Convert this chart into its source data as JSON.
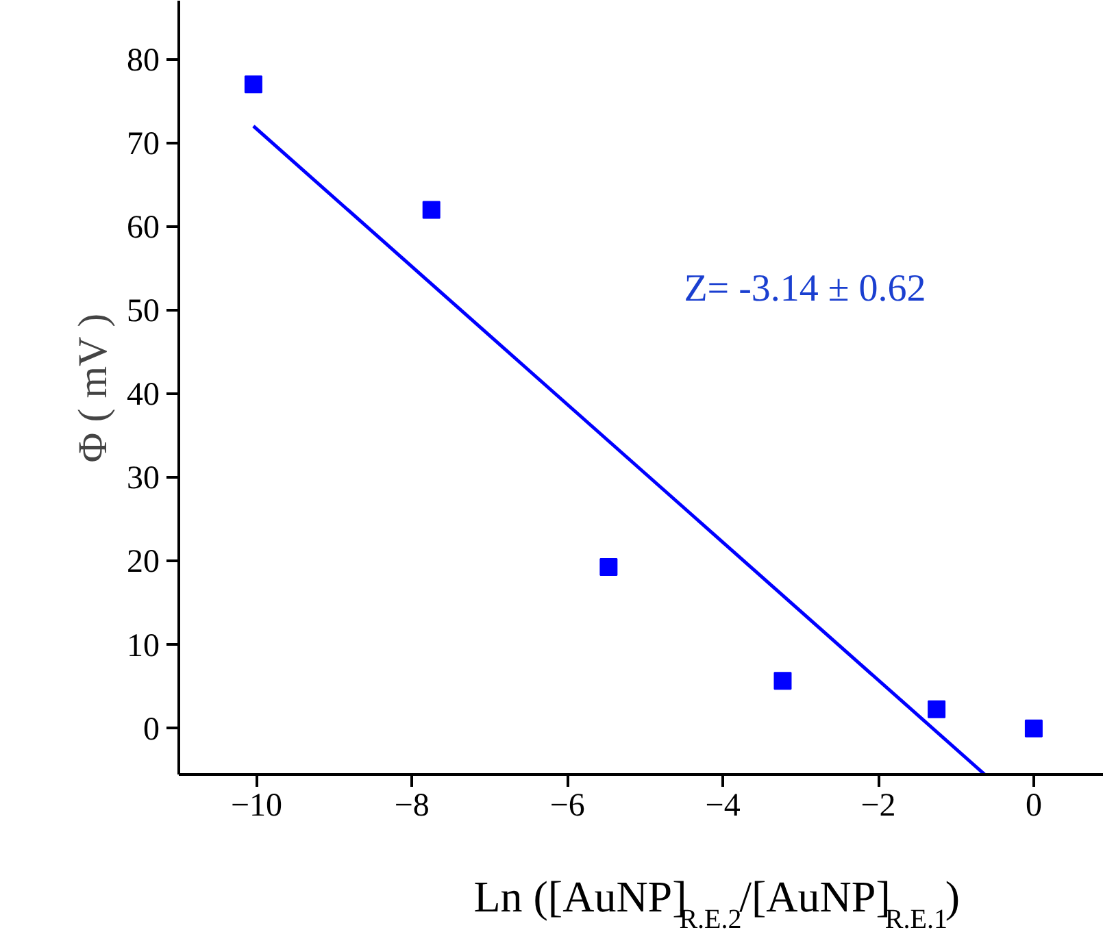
{
  "chart_data": {
    "type": "scatter",
    "xlabel": "Ln ([AuNP]$_{R.E.2}$/[AuNP]$_{R.E.1}$)",
    "ylabel": "Φ ( mV )",
    "xlim": [
      -11,
      0.9
    ],
    "ylim": [
      -5.5,
      87
    ],
    "xticks": [
      -10,
      -8,
      -6,
      -4,
      -2,
      0
    ],
    "yticks": [
      0,
      10,
      20,
      30,
      40,
      50,
      60,
      70,
      80
    ],
    "grid": false,
    "marker": "square",
    "series": [
      {
        "color": "#0000ff",
        "x": [
          -10.04,
          -7.75,
          -5.47,
          -3.23,
          -1.25,
          0
        ],
        "values": [
          77,
          62,
          19.3,
          5.7,
          2.3,
          0
        ]
      },
      {
        "type": "line",
        "color": "#0000ff",
        "line_style": "solid",
        "marker": "none",
        "x": [
          -10.04,
          -0.63
        ],
        "values": [
          72,
          -5.5
        ]
      }
    ],
    "annotations": [
      "Z= -3.14 ± 0.62"
    ]
  }
}
